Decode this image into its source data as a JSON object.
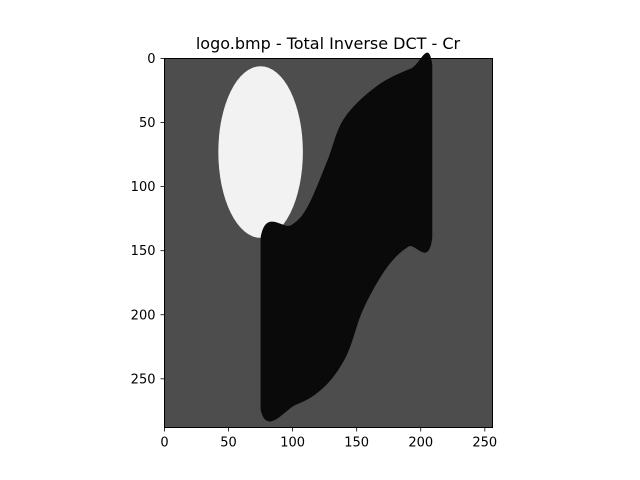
{
  "chart_data": {
    "type": "heatmap",
    "title": "logo.bmp - Total Inverse DCT - Cr",
    "xlabel": "",
    "ylabel": "",
    "xlim": [
      0,
      256
    ],
    "ylim": [
      288,
      0
    ],
    "x_ticks": [
      0,
      50,
      100,
      150,
      200,
      250
    ],
    "y_ticks": [
      0,
      50,
      100,
      150,
      200,
      250
    ],
    "image": {
      "width": 256,
      "height": 288,
      "colormap": "gray",
      "background_color": "#4d4d4d",
      "regions": [
        {
          "name": "ellipse",
          "shape": "ellipse",
          "color": "#f2f2f2",
          "center": [
            75,
            73
          ],
          "radii": [
            33,
            67
          ]
        },
        {
          "name": "s-shape",
          "shape": "path",
          "color": "#0a0a0a",
          "points": [
            [
              75,
              140
            ],
            [
              99,
              130
            ],
            [
              112,
              115
            ],
            [
              127,
              80
            ],
            [
              140,
              47
            ],
            [
              165,
              22
            ],
            [
              192,
              8
            ],
            [
              209,
              5
            ],
            [
              209,
              140
            ],
            [
              190,
              147
            ],
            [
              173,
              164
            ],
            [
              155,
              196
            ],
            [
              142,
              232
            ],
            [
              125,
              256
            ],
            [
              103,
              270
            ],
            [
              75,
              274
            ]
          ]
        }
      ]
    }
  }
}
